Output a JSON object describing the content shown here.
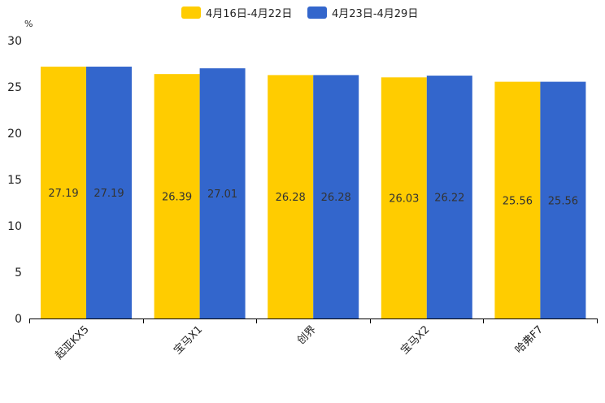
{
  "chart_data": {
    "type": "bar",
    "title": "",
    "xlabel": "",
    "ylabel": "%",
    "ylim": [
      0,
      30
    ],
    "yticks": [
      0,
      5,
      10,
      15,
      20,
      25,
      30
    ],
    "grid": false,
    "legend_position": "top-center",
    "categories": [
      "起亚KX5",
      "宝马X1",
      "创界",
      "宝马X2",
      "哈弗F7"
    ],
    "series": [
      {
        "name": "4月16日-4月22日",
        "color": "#FFCC00",
        "values": [
          27.19,
          26.39,
          26.28,
          26.03,
          25.56
        ]
      },
      {
        "name": "4月23日-4月29日",
        "color": "#3366CC",
        "values": [
          27.19,
          27.01,
          26.28,
          26.22,
          25.56
        ]
      }
    ]
  }
}
